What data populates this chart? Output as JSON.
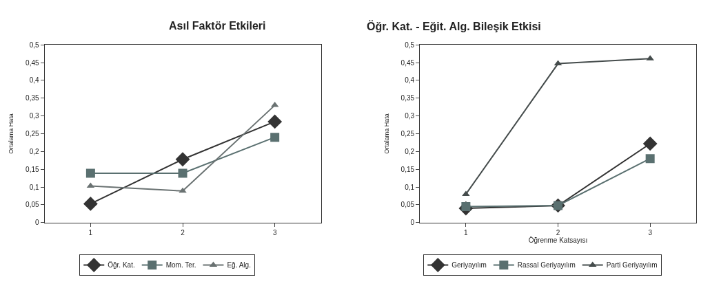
{
  "chart_data": [
    {
      "type": "line",
      "title": "Asıl Faktör Etkileri",
      "ylabel": "Ortalama Hata",
      "categories": [
        "1",
        "2",
        "3"
      ],
      "series": [
        {
          "name": "Öğr. Kat.",
          "color": "#333333",
          "marker": "diamond",
          "values": [
            0.053,
            0.178,
            0.284
          ]
        },
        {
          "name": "Mom. Ter.",
          "color": "#5a7070",
          "marker": "square",
          "values": [
            0.139,
            0.139,
            0.24
          ]
        },
        {
          "name": "Eğ. Alg.",
          "color": "#6a7272",
          "marker": "triangle",
          "values": [
            0.103,
            0.089,
            0.33
          ]
        }
      ],
      "ylim": [
        0,
        0.5
      ],
      "yticks": [
        {
          "value": 0,
          "label": "0"
        },
        {
          "value": 0.05,
          "label": "0,05"
        },
        {
          "value": 0.1,
          "label": "0,1"
        },
        {
          "value": 0.15,
          "label": "0,15"
        },
        {
          "value": 0.2,
          "label": "0,2"
        },
        {
          "value": 0.25,
          "label": "0,25"
        },
        {
          "value": 0.3,
          "label": "0,3"
        },
        {
          "value": 0.35,
          "label": "0,35"
        },
        {
          "value": 0.4,
          "label": "0,4"
        },
        {
          "value": 0.45,
          "label": "0,45"
        },
        {
          "value": 0.5,
          "label": "0,5"
        }
      ],
      "legend": "bottom",
      "line_style": "solid"
    },
    {
      "type": "line",
      "title": "Öğr. Kat. - Eğit. Alg. Bileşik Etkisi",
      "ylabel": "Ortalama Hata",
      "xlabel": "Öğrenme Katsayısı",
      "categories": [
        "1",
        "2",
        "3"
      ],
      "series": [
        {
          "name": "Geriyayılım",
          "color": "#333333",
          "marker": "diamond",
          "values": [
            0.04,
            0.048,
            0.222
          ]
        },
        {
          "name": "Rassal Geriyayılım",
          "color": "#5a7070",
          "marker": "square",
          "values": [
            0.045,
            0.048,
            0.18
          ]
        },
        {
          "name": "Parti Geriyayılım",
          "color": "#454c4c",
          "marker": "triangle",
          "values": [
            0.08,
            0.447,
            0.461
          ]
        }
      ],
      "ylim": [
        0,
        0.5
      ],
      "yticks": [
        {
          "value": 0,
          "label": "0"
        },
        {
          "value": 0.05,
          "label": "0,05"
        },
        {
          "value": 0.1,
          "label": "0,1"
        },
        {
          "value": 0.15,
          "label": "0,15"
        },
        {
          "value": 0.2,
          "label": "0,2"
        },
        {
          "value": 0.25,
          "label": "0,25"
        },
        {
          "value": 0.3,
          "label": "0,3"
        },
        {
          "value": 0.35,
          "label": "0,35"
        },
        {
          "value": 0.4,
          "label": "0,4"
        },
        {
          "value": 0.45,
          "label": "0,45"
        },
        {
          "value": 0.5,
          "label": "0,5"
        }
      ],
      "legend": "bottom",
      "line_style": "solid"
    }
  ]
}
